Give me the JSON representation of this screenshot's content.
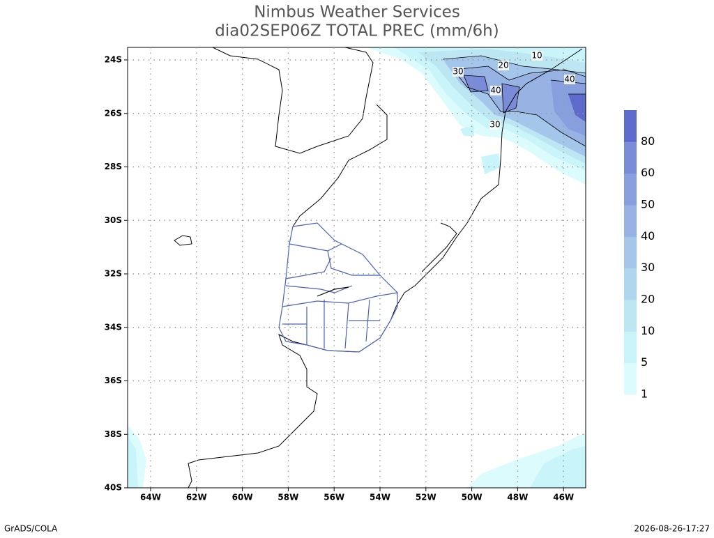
{
  "header": {
    "title": "Nimbus Weather Services",
    "subtitle": "dia02SEP06Z TOTAL PREC (mm/6h)"
  },
  "map": {
    "lat_labels": [
      "24S",
      "26S",
      "28S",
      "30S",
      "32S",
      "34S",
      "36S",
      "38S",
      "40S"
    ],
    "lon_labels": [
      "64W",
      "62W",
      "60W",
      "58W",
      "56W",
      "54W",
      "52W",
      "50W",
      "48W",
      "46W"
    ],
    "contour_labels": [
      "10",
      "20",
      "30",
      "40",
      "40",
      "30"
    ]
  },
  "colorbar": {
    "labels": [
      "1",
      "5",
      "10",
      "20",
      "30",
      "40",
      "50",
      "60",
      "80"
    ],
    "colors": [
      "#dcfbfd",
      "#c9f4f9",
      "#bde6f3",
      "#b0d6ef",
      "#a4c6ea",
      "#96b3e4",
      "#889fdd",
      "#7a8cd7",
      "#5e6bcd"
    ]
  },
  "footer": {
    "left": "GrADS/COLA",
    "right": "2026-08-26-17:27"
  }
}
